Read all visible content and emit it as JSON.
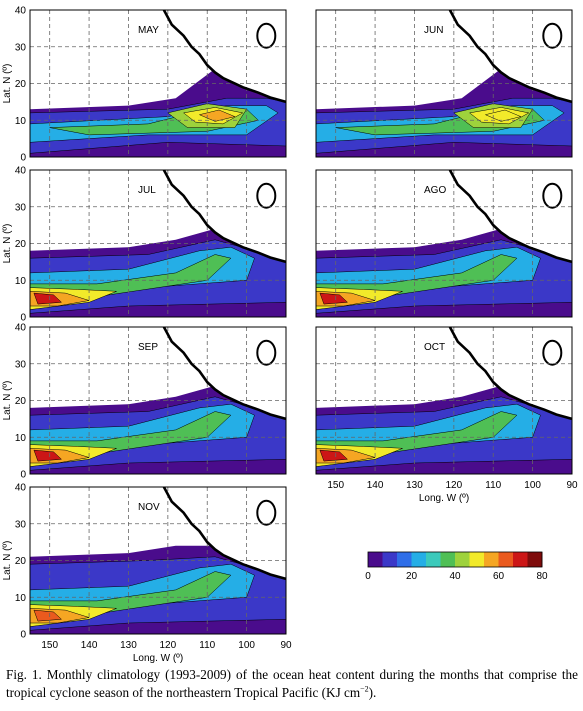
{
  "figure": {
    "panels": [
      {
        "month": "MAY",
        "col": 0,
        "row": 0,
        "show_ylabel": true,
        "show_xticks": false,
        "peak": [
          105,
          11
        ],
        "peak_level": 5,
        "belt": "may"
      },
      {
        "month": "JUN",
        "col": 1,
        "row": 0,
        "show_ylabel": false,
        "show_xticks": false,
        "peak": [
          110,
          11
        ],
        "peak_level": 4,
        "belt": "jun"
      },
      {
        "month": "JUL",
        "col": 0,
        "row": 1,
        "show_ylabel": true,
        "show_xticks": false,
        "peak": [
          150,
          5
        ],
        "peak_level": 5,
        "belt": "west"
      },
      {
        "month": "AGO",
        "col": 1,
        "row": 1,
        "show_ylabel": false,
        "show_xticks": false,
        "peak": [
          150,
          5
        ],
        "peak_level": 5,
        "belt": "west"
      },
      {
        "month": "SEP",
        "col": 0,
        "row": 2,
        "show_ylabel": true,
        "show_xticks": false,
        "peak": [
          150,
          6
        ],
        "peak_level": 5,
        "belt": "west"
      },
      {
        "month": "OCT",
        "col": 1,
        "row": 2,
        "show_ylabel": false,
        "show_xticks": true,
        "peak": [
          150,
          6
        ],
        "peak_level": 5,
        "belt": "west"
      },
      {
        "month": "NOV",
        "col": 0,
        "row": 3,
        "show_ylabel": true,
        "show_xticks": true,
        "peak": [
          150,
          5
        ],
        "peak_level": 4,
        "belt": "nov"
      }
    ],
    "y_axis": {
      "label": "Lat. N (º)",
      "ticks": [
        0,
        10,
        20,
        30,
        40
      ]
    },
    "x_axis": {
      "label": "Long. W (º)",
      "ticks": [
        150,
        140,
        130,
        120,
        110,
        100,
        90
      ]
    },
    "colorbar": {
      "ticks": [
        0,
        20,
        40,
        60,
        80
      ],
      "colors": [
        "#4a0c8c",
        "#3b38c8",
        "#2f6ee8",
        "#25aee6",
        "#3ccabb",
        "#4fbf55",
        "#9ed23c",
        "#f2ea2a",
        "#f5a623",
        "#ea5a1e",
        "#cc1616",
        "#7e0b0b"
      ]
    }
  },
  "chart_data": {
    "type": "heatmap",
    "title": "",
    "variable": "Ocean heat content (KJ cm⁻²)",
    "xlabel": "Long. W (º)",
    "ylabel": "Lat. N (º)",
    "xlim": [
      155,
      90
    ],
    "ylim": [
      0,
      40
    ],
    "colorbar_range": [
      0,
      80
    ],
    "months": [
      "MAY",
      "JUN",
      "JUL",
      "AGO",
      "SEP",
      "OCT",
      "NOV"
    ],
    "max_center": [
      {
        "month": "MAY",
        "lon_w": 105,
        "lat_n": 11
      },
      {
        "month": "JUN",
        "lon_w": 110,
        "lat_n": 11
      },
      {
        "month": "JUL",
        "lon_w": 150,
        "lat_n": 5
      },
      {
        "month": "AGO",
        "lon_w": 150,
        "lat_n": 5
      },
      {
        "month": "SEP",
        "lon_w": 150,
        "lat_n": 6
      },
      {
        "month": "OCT",
        "lon_w": 150,
        "lat_n": 6
      },
      {
        "month": "NOV",
        "lon_w": 150,
        "lat_n": 5
      }
    ]
  },
  "caption": {
    "prefix": "Fig. 1. Monthly climatology (1993-2009) of the ocean heat content during the months that comprise the tropical cyclone season of the northeastern Tropical Pacific (KJ cm",
    "sup": "−2",
    "suffix": ")."
  }
}
